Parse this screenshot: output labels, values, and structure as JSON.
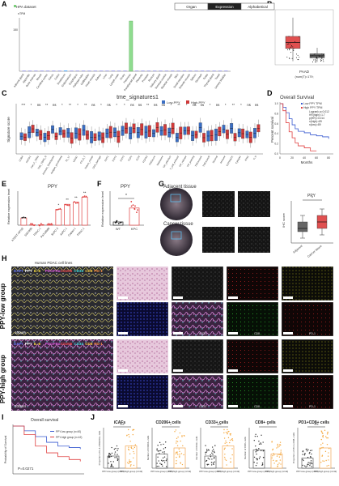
{
  "panel_labels": [
    "A",
    "B",
    "C",
    "D",
    "E",
    "F",
    "G",
    "H",
    "I",
    "J"
  ],
  "A": {
    "legend": "HPA dataset",
    "tabs": [
      "Organ",
      "Expression",
      "Alphabetical"
    ],
    "ylabel": "nTPM",
    "ytick_top": "150",
    "chart_data": {
      "type": "bar",
      "categories": [
        "Adrenal gland",
        "Appendix",
        "Bone marrow",
        "Breast",
        "Cerebral cortex",
        "Cervix",
        "Colon",
        "Duodenum",
        "Endometrium",
        "Esophagus",
        "Fallopian tube",
        "Gallbladder",
        "Heart muscle",
        "Kidney",
        "Liver",
        "Lung",
        "Lymph node",
        "Ovary",
        "Pancreas",
        "Parathyroid gland",
        "Placenta",
        "Prostate",
        "Rectum",
        "Salivary gland",
        "Seminal vesicle",
        "Skeletal muscle",
        "Skin",
        "Small intestine",
        "Smooth muscle",
        "Spleen",
        "Stomach",
        "Testis",
        "Thyroid gland",
        "Tonsil",
        "Urinary bladder"
      ],
      "values": [
        0.4,
        0.3,
        0.2,
        0.3,
        0.1,
        0.3,
        1.2,
        2.5,
        0.3,
        0.2,
        0.3,
        0.5,
        0.1,
        0.5,
        0.2,
        0.3,
        0.3,
        0.2,
        155,
        0.2,
        0.4,
        0.2,
        0.6,
        0.3,
        0.2,
        0.1,
        0.2,
        0.8,
        0.2,
        0.3,
        0.9,
        0.3,
        0.2,
        0.3,
        0.2
      ]
    }
  },
  "B": {
    "xlabel": "PAAD",
    "xsub": "(num(T)=179;",
    "chart_data": {
      "type": "box",
      "series": [
        {
          "name": "Tumor",
          "median": 3.1,
          "q1": 2.2,
          "q3": 4.0,
          "min": 0.3,
          "max": 6.8,
          "color": "#e05050"
        },
        {
          "name": "Normal",
          "median": 1.1,
          "q1": 0.8,
          "q3": 1.4,
          "min": 0.2,
          "max": 2.3,
          "color": "#6b6b6b"
        }
      ]
    }
  },
  "C": {
    "title": "tme_signatures1",
    "legend": [
      "Low-PPY",
      "High-PPY"
    ],
    "ylabel": "Signature score",
    "significance": [
      "***",
      "*",
      "ns",
      "**",
      "ns",
      "*",
      "**",
      "*",
      "**",
      "ns",
      "*",
      "ns",
      "*",
      "*",
      "ns",
      "ns",
      "**",
      "ns",
      "ns",
      "*",
      "**",
      "*",
      "ns",
      "ns",
      "*",
      "ns",
      "*",
      "**",
      "*",
      "ns",
      "ns"
    ],
    "categories": [
      "CD8A",
      "PDCD1",
      "Pan_F_TBRs",
      "TME_TBRS_B",
      "Immune_Checkpoint",
      "Antigen_processing",
      "Th_17",
      "MDSC",
      "CD_8_T",
      "Nature_metab",
      "DNA_damage",
      "EMT1",
      "EMT2",
      "EMT3",
      "TGFb",
      "ECM",
      "FGFR3",
      "TMEscore",
      "Matrisome",
      "TIP_infection",
      "T_cell_exhaust",
      "TIP_release",
      "TIP_priming",
      "TMEscoreA",
      "TMEscoreB",
      "Stromal",
      "Immune",
      "ESTIMATE",
      "Cytolytic",
      "IFNG",
      "TLS"
    ],
    "chart_data": {
      "type": "box",
      "categories_ref": "C.categories",
      "series": [
        {
          "name": "Low-PPY",
          "color": "#3a6ec4"
        },
        {
          "name": "High-PPY",
          "color": "#d03a3a"
        }
      ]
    }
  },
  "D": {
    "title": "Overall Survival",
    "legend": [
      "Low PPY TPM",
      "High PPY TPM"
    ],
    "stats": [
      "Logrank p=0.012",
      "HR(high)=1.7",
      "p(HR)=0.014",
      "n(high)=89",
      "n(low)=89"
    ],
    "ylabel": "Percent survival",
    "xlabel": "Months",
    "xticks": [
      "0",
      "20",
      "40",
      "60",
      "80"
    ],
    "yticks": [
      "0.0",
      "0.2",
      "0.4",
      "0.6",
      "0.8",
      "1.0"
    ],
    "chart_data": {
      "type": "line",
      "series": [
        {
          "name": "Low PPY TPM",
          "x": [
            0,
            5,
            10,
            15,
            20,
            25,
            30,
            40,
            50,
            60,
            70,
            80
          ],
          "y": [
            1.0,
            0.93,
            0.82,
            0.7,
            0.58,
            0.5,
            0.45,
            0.42,
            0.38,
            0.36,
            0.34,
            0.3
          ],
          "color": "#3a5bd0"
        },
        {
          "name": "High PPY TPM",
          "x": [
            0,
            5,
            10,
            15,
            20,
            25,
            30,
            40,
            50,
            60
          ],
          "y": [
            1.0,
            0.86,
            0.62,
            0.44,
            0.32,
            0.22,
            0.16,
            0.12,
            0.06,
            0.06
          ],
          "color": "#e04040"
        }
      ]
    }
  },
  "E": {
    "title": "PPY",
    "ylabel": "Relative expression level",
    "significance": [
      "",
      "",
      "",
      "",
      "*",
      "**",
      "**",
      "**"
    ],
    "chart_data": {
      "type": "bar",
      "categories": [
        "hTERT-HPNE",
        "SW1990",
        "PANC-1",
        "PaTu8988",
        "BxPC-3",
        "AsPC-1",
        "Capan-1",
        "PANC-1"
      ],
      "values": [
        1.0,
        0.05,
        0.05,
        0.1,
        2.2,
        2.9,
        3.2,
        3.9
      ],
      "ylim": [
        0,
        4.5
      ]
    }
  },
  "F": {
    "title": "PPY",
    "ylabel": "Relative expression level",
    "significance": "*",
    "chart_data": {
      "type": "bar",
      "categories": [
        "WT",
        "KPC"
      ],
      "values": [
        1.0,
        5.3
      ],
      "ylim": [
        0,
        10
      ]
    }
  },
  "G": {
    "title_adjacent": "Adjacent tissue",
    "title_cancer": "Cancer tissue",
    "chart_title": "PPY",
    "ylabel": "IHC score",
    "significance": "*",
    "chart_data": {
      "type": "box",
      "categories": [
        "Adjacent",
        "Cancer tissue"
      ],
      "series": [
        {
          "name": "Adjacent",
          "median": 4,
          "q1": 3,
          "q3": 6,
          "min": 1,
          "max": 8,
          "color": "#666666"
        },
        {
          "name": "Cancer tissue",
          "median": 6,
          "q1": 4,
          "q3": 8,
          "min": 2,
          "max": 10,
          "color": "#e05050"
        }
      ]
    }
  },
  "H": {
    "title": "Human PDAC cell lines",
    "group_low": "PPY-low group",
    "group_high": "PPY-high group",
    "marker_legend": [
      "DAPI",
      "PPY",
      "IL-6",
      "PDGFRα",
      "CD206",
      "CD33",
      "CD8",
      "PD-1"
    ],
    "scale_bar": "100μm",
    "channel_tags": [
      "CD33",
      "CD8",
      "PD-1",
      "iCAFs"
    ]
  },
  "I": {
    "title": "Overall survival",
    "legend": [
      "PPY-low group (n=40)",
      "PPY-high group (n=42)"
    ],
    "pvalue": "P=0.0271",
    "ylabel": "Probability of Survival",
    "chart_data": {
      "type": "line",
      "series": [
        {
          "name": "PPY-low group",
          "x": [
            0,
            10,
            20,
            30,
            40,
            50,
            60
          ],
          "y": [
            1.0,
            0.9,
            0.78,
            0.66,
            0.58,
            0.55,
            0.52
          ],
          "color": "#3a5bd0"
        },
        {
          "name": "PPY-high group",
          "x": [
            0,
            10,
            20,
            30,
            40,
            50,
            60
          ],
          "y": [
            1.0,
            0.82,
            0.58,
            0.44,
            0.36,
            0.3,
            0.26
          ],
          "color": "#e04040"
        }
      ]
    }
  },
  "J": {
    "panels": [
      {
        "title": "iCAFs",
        "sig": "***",
        "ylabel": "Proportion of IL-6+PDGFRα+ cells",
        "low": "PPY-low group (n=40)",
        "high": "PPY-high group (n=42)",
        "low_mean": 0.3,
        "high_mean": 0.55
      },
      {
        "title": "CD206+ cells",
        "sig": "*",
        "ylabel": "Number of CD206+ cells",
        "low": "PPY-low group (n=40)",
        "high": "PPY-high group (n=42)",
        "low_mean": 0.35,
        "high_mean": 0.5
      },
      {
        "title": "CD33+ cells",
        "sig": "***",
        "ylabel": "Number of CD33+ cells",
        "low": "PPY-low group (n=40)",
        "high": "PPY-high group (n=42)",
        "low_mean": 0.3,
        "high_mean": 0.55
      },
      {
        "title": "CD8+ cells",
        "sig": "*",
        "ylabel": "Number of CD8+ cells",
        "low": "PPY-low group (n=40)",
        "high": "PPY-high group (n=42)",
        "low_mean": 0.45,
        "high_mean": 0.35
      },
      {
        "title": "PD1+CD8+ cells",
        "sig": "***",
        "ylabel": "Proportion of PD-1+CD8+ cells",
        "low": "PPY-low group (n=40)",
        "high": "PPY-high group (n=42)",
        "low_mean": 0.25,
        "high_mean": 0.5
      }
    ]
  }
}
